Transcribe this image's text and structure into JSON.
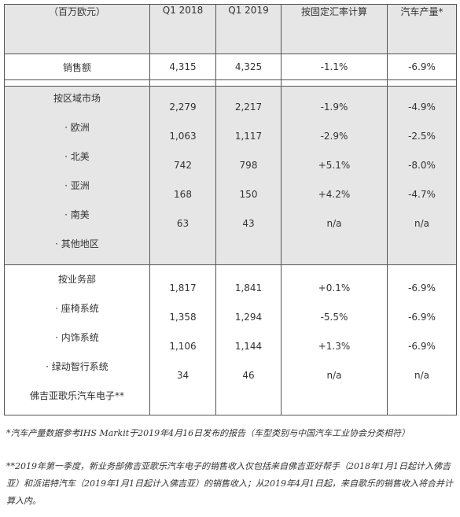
{
  "table": {
    "header": [
      "（百万欧元）",
      "Q1 2018",
      "Q1 2019",
      "按固定汇率计算",
      "汽车产量*"
    ],
    "sales": {
      "label": "销售额",
      "values": [
        "4,315",
        "4,325",
        "-1.1%",
        "-6.9%"
      ]
    },
    "regions": [
      {
        "label": "按区域市场",
        "values": [
          "2,279",
          "2,217",
          "-1.9%",
          "-4.9%"
        ]
      },
      {
        "label": "· 欧洲",
        "values": [
          "1,063",
          "1,117",
          "-2.9%",
          "-2.5%"
        ]
      },
      {
        "label": "· 北美",
        "values": [
          "742",
          "798",
          "+5.1%",
          "-8.0%"
        ]
      },
      {
        "label": "· 亚洲",
        "values": [
          "168",
          "150",
          "+4.2%",
          "-4.7%"
        ]
      },
      {
        "label": "· 南美",
        "values": [
          "63",
          "43",
          "n/a",
          "n/a"
        ]
      },
      {
        "label": "· 其他地区",
        "values": [
          "",
          "",
          "",
          ""
        ]
      }
    ],
    "segments": [
      {
        "label": "按业务部",
        "values": [
          "1,817",
          "1,841",
          "+0.1%",
          "-6.9%"
        ]
      },
      {
        "label": "· 座椅系统",
        "values": [
          "1,358",
          "1,294",
          "-5.5%",
          "-6.9%"
        ]
      },
      {
        "label": "· 内饰系统",
        "values": [
          "1,106",
          "1,144",
          "+1.3%",
          "-6.9%"
        ]
      },
      {
        "label": "· 绿动智行系统",
        "values": [
          "34",
          "46",
          "n/a",
          "n/a"
        ]
      },
      {
        "label": "佛吉亚歌乐汽车电子**",
        "values": [
          "",
          "",
          "",
          ""
        ]
      }
    ]
  },
  "notes": [
    "*汽车产量数据参考IHS Markit于2019年4月16日发布的报告（车型类别与中国汽车工业协会分类相符）",
    "**2019年第一季度，新业务部佛吉亚歌乐汽车电子的销售收入仅包括来自佛吉亚好帮手（2018年1月1日起计入佛吉亚）和派诺特汽车（2019年1月1日起计入佛吉亚）的销售收入；从2019年4月1日起，来自歌乐的销售收入将合并计算入内。"
  ]
}
